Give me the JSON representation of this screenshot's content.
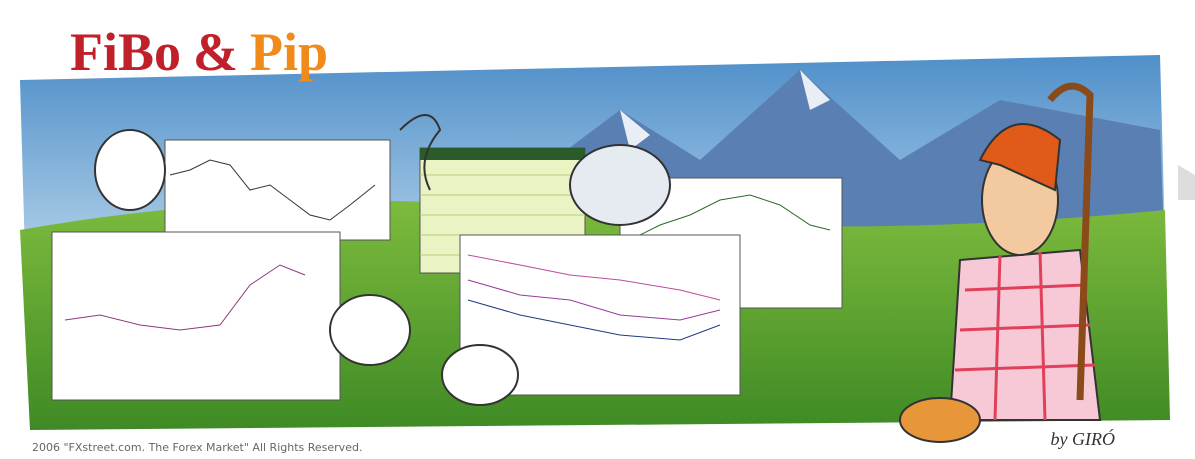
{
  "header": {
    "title_left": "FiBo",
    "title_amp": "&",
    "title_right": "Pip"
  },
  "footer": {
    "copyright": "2006 \"FXstreet.com. The Forex Market\" All Rights Reserved.",
    "signature": "by GIRÓ"
  }
}
